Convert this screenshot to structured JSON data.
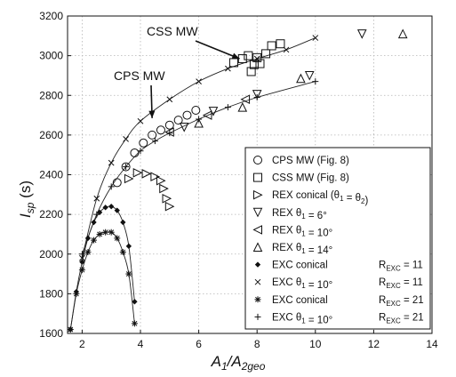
{
  "chart_data": {
    "type": "scatter",
    "title": "",
    "xlabel": "A1/A2geo",
    "xlabel_parts": {
      "main": "A",
      "sub1": "1",
      "slash": "/A",
      "sub2": "2geo"
    },
    "ylabel": "Isp (s)",
    "ylabel_parts": {
      "main": "I",
      "sub": "sp",
      "unit": " (s)"
    },
    "xlim": [
      1.5,
      14
    ],
    "ylim": [
      1600,
      3200
    ],
    "xticks": [
      2,
      4,
      6,
      8,
      10,
      12,
      14
    ],
    "xtick_labels": [
      "2",
      "4",
      "6",
      "8",
      "10",
      "12",
      "14"
    ],
    "yticks": [
      1600,
      1800,
      2000,
      2200,
      2400,
      2600,
      2800,
      3000,
      3200
    ],
    "ytick_labels": [
      "1600",
      "1800",
      "2000",
      "2200",
      "2400",
      "2600",
      "2800",
      "3000",
      "3200"
    ],
    "grid": true,
    "legend_position": "right",
    "annotations": [
      {
        "text": "CSS MW",
        "arrow_to": [
          7.4,
          2985
        ]
      },
      {
        "text": "CPS MW",
        "arrow_to": [
          4.4,
          2685
        ]
      }
    ],
    "series": [
      {
        "name": "CPS MW (Fig. 8)",
        "marker": "circle",
        "line": false,
        "x": [
          3.2,
          3.5,
          3.8,
          4.1,
          4.4,
          4.7,
          5.0,
          5.3,
          5.6,
          5.9
        ],
        "y": [
          2360,
          2440,
          2510,
          2560,
          2600,
          2625,
          2650,
          2675,
          2700,
          2725
        ]
      },
      {
        "name": "CSS MW (Fig. 8)",
        "marker": "square",
        "line": false,
        "x": [
          7.2,
          7.5,
          7.7,
          7.8,
          7.9,
          8.0,
          8.1,
          8.3,
          8.5,
          8.8
        ],
        "y": [
          2965,
          2985,
          3000,
          2920,
          2955,
          2990,
          2960,
          3010,
          3050,
          3060
        ]
      },
      {
        "name": "REX conical (θ1 = θ2)",
        "marker": "triangle-right",
        "line": false,
        "x": [
          3.6,
          3.9,
          4.2,
          4.5,
          4.7,
          4.8,
          4.9,
          5.0
        ],
        "y": [
          2380,
          2410,
          2405,
          2390,
          2370,
          2330,
          2280,
          2240
        ]
      },
      {
        "name": "REX θ1 = 6°",
        "marker": "triangle-down",
        "line": false,
        "x": [
          5.5,
          6.5,
          8.0,
          9.8,
          11.6
        ],
        "y": [
          2640,
          2720,
          2805,
          2900,
          3110
        ]
      },
      {
        "name": "REX θ1 = 10°",
        "marker": "triangle-left",
        "line": false,
        "x": [
          5.0,
          6.3,
          7.6
        ],
        "y": [
          2615,
          2700,
          2780
        ]
      },
      {
        "name": "REX θ1 = 14°",
        "marker": "triangle-up",
        "line": false,
        "x": [
          6.0,
          7.5,
          9.5,
          13.0
        ],
        "y": [
          2660,
          2740,
          2885,
          3110
        ]
      },
      {
        "name": "EXC conical",
        "rexc": "11",
        "marker": "diamond",
        "line": true,
        "x": [
          1.6,
          1.8,
          2.0,
          2.2,
          2.4,
          2.6,
          2.8,
          3.0,
          3.2,
          3.4,
          3.6,
          3.8
        ],
        "y": [
          1620,
          1810,
          1960,
          2080,
          2160,
          2210,
          2235,
          2240,
          2220,
          2160,
          2040,
          1760
        ]
      },
      {
        "name": "EXC θ1 = 10°",
        "rexc": "11",
        "marker": "x",
        "line": true,
        "x": [
          2.0,
          2.5,
          3.0,
          3.5,
          4.0,
          5.0,
          6.0,
          7.0,
          8.0,
          9.0,
          10.0
        ],
        "y": [
          1980,
          2280,
          2460,
          2580,
          2670,
          2780,
          2870,
          2935,
          2985,
          3030,
          3090
        ]
      },
      {
        "name": "EXC conical",
        "rexc": "21",
        "marker": "asterisk",
        "line": true,
        "x": [
          1.6,
          1.8,
          2.0,
          2.2,
          2.4,
          2.6,
          2.8,
          3.0,
          3.2,
          3.4,
          3.6,
          3.8
        ],
        "y": [
          1620,
          1800,
          1920,
          2010,
          2070,
          2100,
          2110,
          2110,
          2080,
          2010,
          1900,
          1650
        ]
      },
      {
        "name": "EXC θ1 = 10°",
        "rexc": "21",
        "marker": "plus",
        "line": true,
        "x": [
          2.0,
          2.5,
          3.0,
          3.5,
          4.0,
          4.5,
          5.0,
          6.0,
          7.0,
          8.0,
          10.0
        ],
        "y": [
          2000,
          2200,
          2340,
          2440,
          2520,
          2570,
          2610,
          2680,
          2740,
          2790,
          2870
        ]
      }
    ]
  }
}
